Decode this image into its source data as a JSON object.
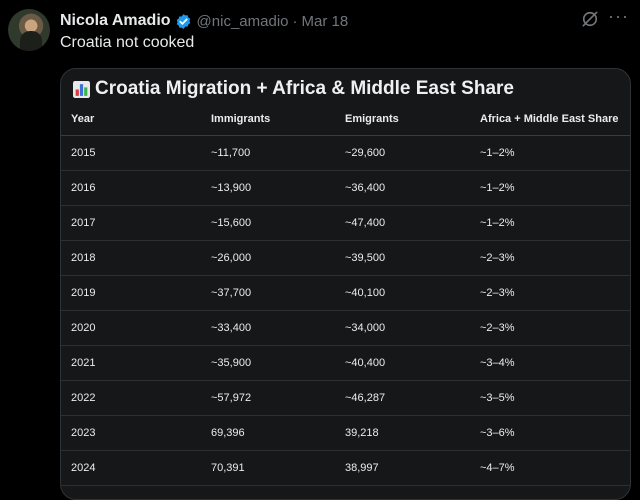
{
  "author": {
    "name": "Nicola Amadio",
    "handle": "@nic_amadio",
    "separator": "·",
    "date": "Mar 18"
  },
  "icons": {
    "verified": "verified-badge-icon",
    "grok": "grok-icon",
    "more": "more-icon"
  },
  "colors": {
    "verified": "#1d9bf0",
    "muted": "#71767b",
    "background": "#000000"
  },
  "tweet": {
    "text": "Croatia not cooked"
  },
  "table": {
    "title": "Croatia Migration + Africa & Middle East Share",
    "headers": [
      "Year",
      "Immigrants",
      "Emigrants",
      "Africa + Middle East Share"
    ],
    "rows": [
      [
        "2015",
        "~11,700",
        "~29,600",
        "~1–2%"
      ],
      [
        "2016",
        "~13,900",
        "~36,400",
        "~1–2%"
      ],
      [
        "2017",
        "~15,600",
        "~47,400",
        "~1–2%"
      ],
      [
        "2018",
        "~26,000",
        "~39,500",
        "~2–3%"
      ],
      [
        "2019",
        "~37,700",
        "~40,100",
        "~2–3%"
      ],
      [
        "2020",
        "~33,400",
        "~34,000",
        "~2–3%"
      ],
      [
        "2021",
        "~35,900",
        "~40,400",
        "~3–4%"
      ],
      [
        "2022",
        "~57,972",
        "~46,287",
        "~3–5%"
      ],
      [
        "2023",
        "69,396",
        "39,218",
        "~3–6%"
      ],
      [
        "2024",
        "70,391",
        "38,997",
        "~4–7%"
      ]
    ]
  }
}
